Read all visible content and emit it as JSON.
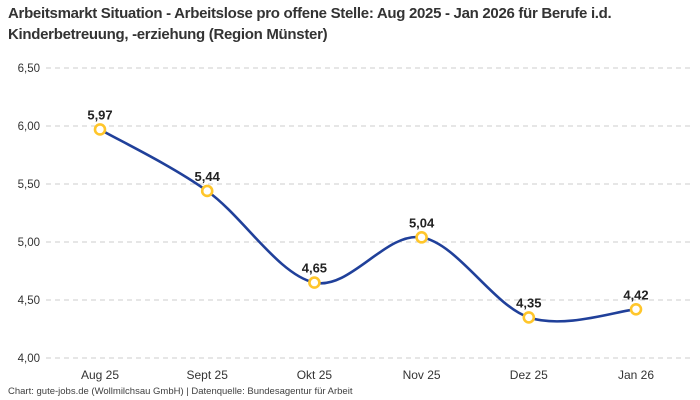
{
  "title": "Arbeitsmarkt Situation - Arbeitslose pro offene Stelle: Aug 2025 - Jan 2026 für Berufe i.d. Kinderbetreuung, -erziehung (Region Münster)",
  "footer": "Chart: gute-jobs.de (Wollmilchsau GmbH) | Datenquelle: Bundesagentur für Arbeit",
  "chart_data": {
    "type": "line",
    "categories": [
      "Aug 25",
      "Sept 25",
      "Okt 25",
      "Nov 25",
      "Dez 25",
      "Jan 26"
    ],
    "values": [
      5.97,
      5.44,
      4.65,
      5.04,
      4.35,
      4.42
    ],
    "point_labels": [
      "5,97",
      "5,44",
      "4,65",
      "5,04",
      "4,35",
      "4,42"
    ],
    "y_tick_labels": [
      "6,50",
      "6,00",
      "5,50",
      "5,00",
      "4,50",
      "4,00"
    ],
    "y_tick_values": [
      6.5,
      6.0,
      5.5,
      5.0,
      4.5,
      4.0
    ],
    "ylim": [
      4.0,
      6.5
    ],
    "grid": "horizontal-dashed",
    "smooth": true,
    "legend": "none",
    "colors": {
      "line": "#20409a",
      "marker_ring": "#ffc62b",
      "marker_fill": "#ffffff",
      "gridline": "#cccccc",
      "title_text": "#333333",
      "axis_text": "#333333",
      "point_label_text": "#222222",
      "footer_text": "#404040"
    }
  }
}
